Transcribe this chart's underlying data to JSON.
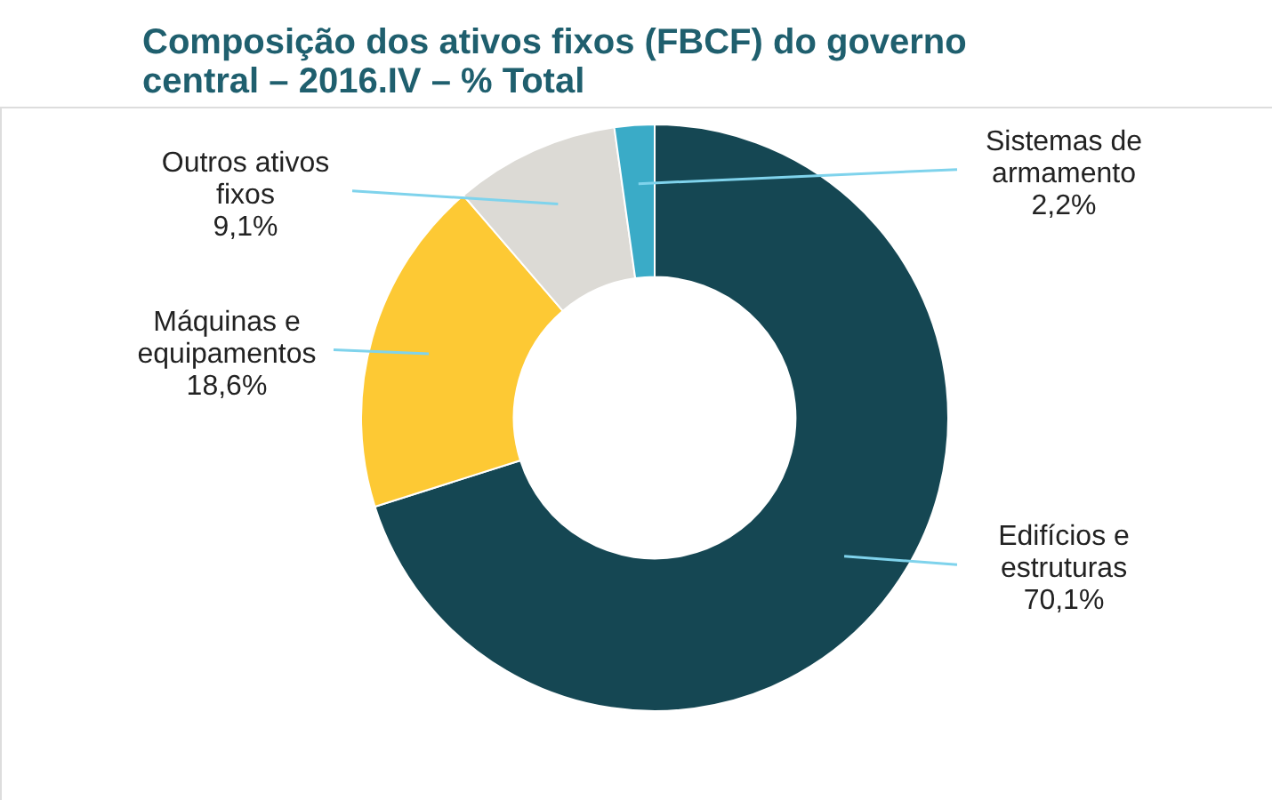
{
  "chart_data": {
    "type": "donut",
    "title": "Composição dos ativos fixos (FBCF) do governo central – 2016.IV – % Total",
    "categories": [
      "Edifícios e estruturas",
      "Máquinas e equipamentos",
      "Outros ativos fixos",
      "Sistemas de armamento"
    ],
    "values": [
      70.1,
      18.6,
      9.1,
      2.2
    ],
    "colors": [
      "#154753",
      "#fdc934",
      "#dcdad5",
      "#3aabc7"
    ],
    "value_labels": [
      "70,1%",
      "18,6%",
      "9,1%",
      "2,2%"
    ]
  }
}
